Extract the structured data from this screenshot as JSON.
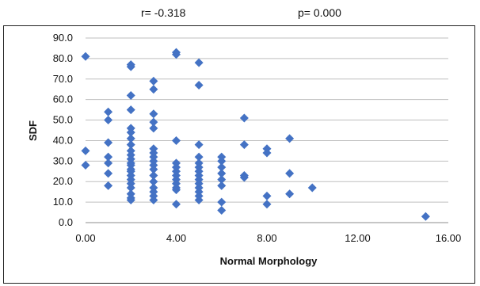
{
  "stats": {
    "r_text": "r= -0.318",
    "p_text": "p= 0.000"
  },
  "chart_data": {
    "type": "scatter",
    "xlabel": "Normal Morphology",
    "ylabel": "SDF",
    "xlim": [
      0,
      16
    ],
    "ylim": [
      0,
      90
    ],
    "x_ticks": [
      0,
      4,
      8,
      12,
      16
    ],
    "x_tick_labels": [
      "0.00",
      "4.00",
      "8.00",
      "12.00",
      "16.00"
    ],
    "y_ticks": [
      0,
      10,
      20,
      30,
      40,
      50,
      60,
      70,
      80,
      90
    ],
    "y_tick_labels": [
      "0.0",
      "10.0",
      "20.0",
      "30.0",
      "40.0",
      "50.0",
      "60.0",
      "70.0",
      "80.0",
      "90.0"
    ],
    "grid": "horizontal",
    "marker": "diamond",
    "marker_color": "#4472C4",
    "series": [
      {
        "points": [
          [
            0,
            81
          ],
          [
            0,
            35
          ],
          [
            0,
            28
          ],
          [
            1,
            54
          ],
          [
            1,
            50
          ],
          [
            1,
            39
          ],
          [
            1,
            32
          ],
          [
            1,
            29
          ],
          [
            1,
            24
          ],
          [
            1,
            18
          ],
          [
            2,
            77
          ],
          [
            2,
            76
          ],
          [
            2,
            62
          ],
          [
            2,
            55
          ],
          [
            2,
            46
          ],
          [
            2,
            44
          ],
          [
            2,
            41
          ],
          [
            2,
            38
          ],
          [
            2,
            35
          ],
          [
            2,
            33
          ],
          [
            2,
            31
          ],
          [
            2,
            29
          ],
          [
            2,
            28
          ],
          [
            2,
            26
          ],
          [
            2,
            25
          ],
          [
            2,
            23
          ],
          [
            2,
            21
          ],
          [
            2,
            19
          ],
          [
            2,
            17
          ],
          [
            2,
            14
          ],
          [
            2,
            12
          ],
          [
            2,
            11
          ],
          [
            3,
            69
          ],
          [
            3,
            65
          ],
          [
            3,
            53
          ],
          [
            3,
            49
          ],
          [
            3,
            46
          ],
          [
            3,
            36
          ],
          [
            3,
            34
          ],
          [
            3,
            32
          ],
          [
            3,
            30
          ],
          [
            3,
            28
          ],
          [
            3,
            26
          ],
          [
            3,
            23
          ],
          [
            3,
            20
          ],
          [
            3,
            17
          ],
          [
            3,
            15
          ],
          [
            3,
            13
          ],
          [
            3,
            11
          ],
          [
            4,
            83
          ],
          [
            4,
            82
          ],
          [
            4,
            40
          ],
          [
            4,
            29
          ],
          [
            4,
            27
          ],
          [
            4,
            25
          ],
          [
            4,
            23
          ],
          [
            4,
            21
          ],
          [
            4,
            19
          ],
          [
            4,
            17
          ],
          [
            4,
            16
          ],
          [
            4,
            9
          ],
          [
            5,
            78
          ],
          [
            5,
            67
          ],
          [
            5,
            38
          ],
          [
            5,
            32
          ],
          [
            5,
            29
          ],
          [
            5,
            27
          ],
          [
            5,
            25
          ],
          [
            5,
            23
          ],
          [
            5,
            21
          ],
          [
            5,
            19
          ],
          [
            5,
            17
          ],
          [
            5,
            15
          ],
          [
            5,
            13
          ],
          [
            5,
            11
          ],
          [
            6,
            32
          ],
          [
            6,
            30
          ],
          [
            6,
            27
          ],
          [
            6,
            24
          ],
          [
            6,
            21
          ],
          [
            6,
            18
          ],
          [
            6,
            10
          ],
          [
            6,
            6
          ],
          [
            7,
            51
          ],
          [
            7,
            38
          ],
          [
            7,
            23
          ],
          [
            7,
            22
          ],
          [
            8,
            36
          ],
          [
            8,
            34
          ],
          [
            8,
            13
          ],
          [
            8,
            9
          ],
          [
            9,
            41
          ],
          [
            9,
            24
          ],
          [
            9,
            14
          ],
          [
            10,
            17
          ],
          [
            15,
            3
          ]
        ]
      }
    ]
  }
}
